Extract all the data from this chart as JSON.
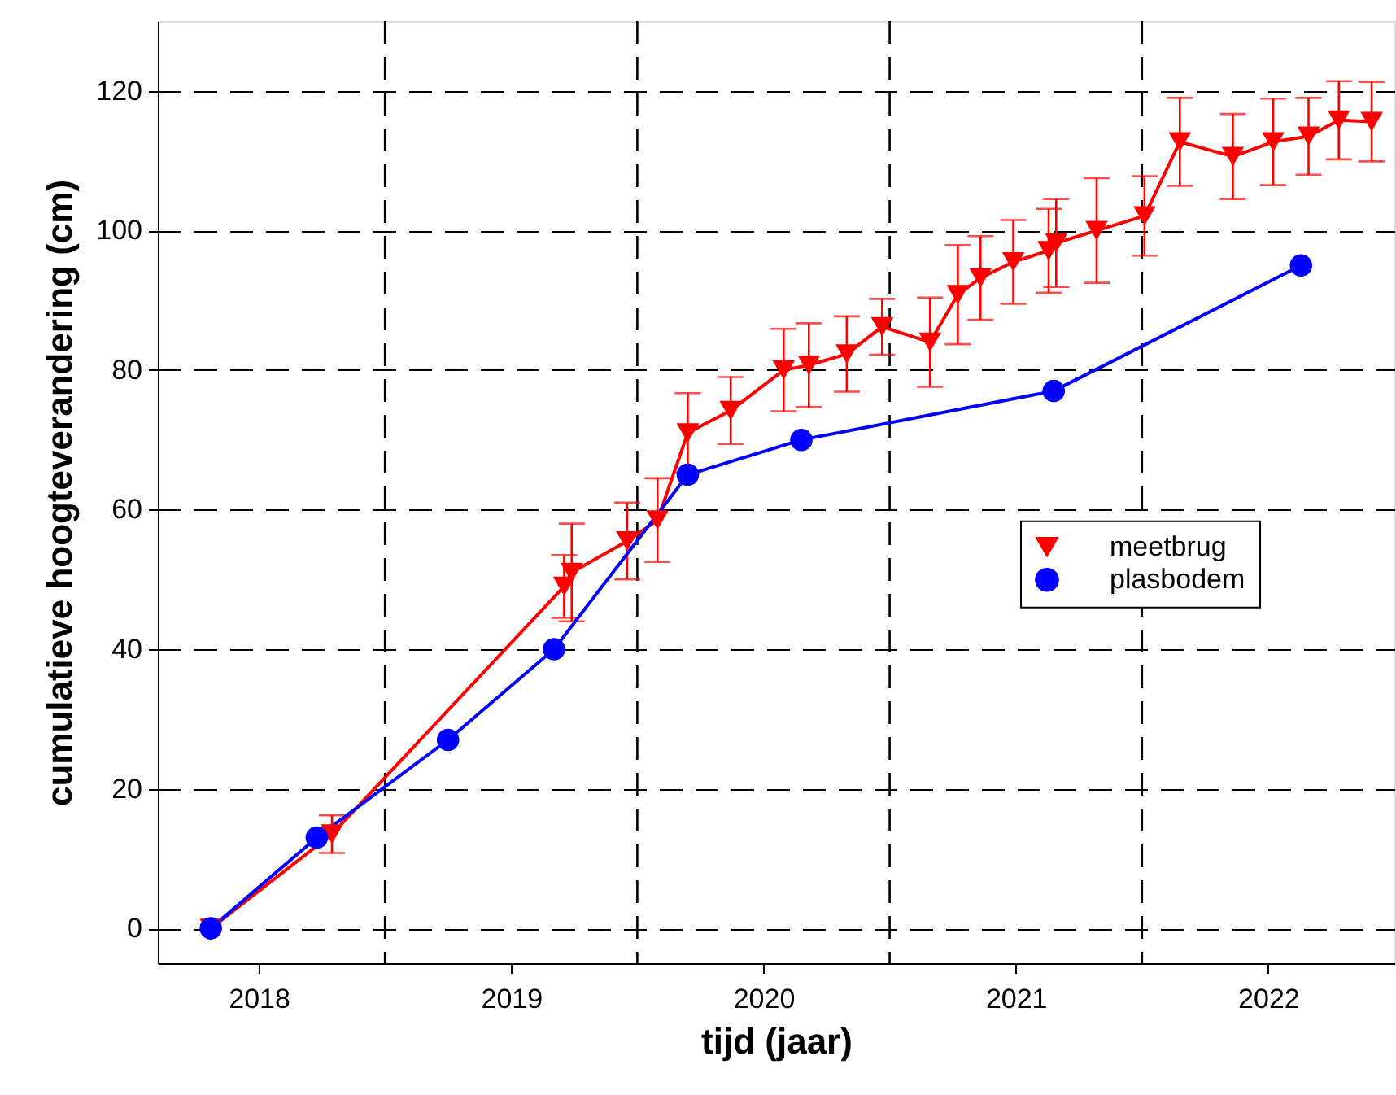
{
  "chart_data": {
    "type": "line",
    "xlabel": "tijd (jaar)",
    "ylabel": "cumulatieve hoogteverandering  (cm)",
    "xlim": [
      2017.6,
      2022.5
    ],
    "ylim": [
      -5,
      130
    ],
    "xticks": [
      2018,
      2019,
      2020,
      2021,
      2022
    ],
    "yticks": [
      0,
      20,
      40,
      60,
      80,
      100,
      120
    ],
    "grid": "y",
    "legend": "right",
    "line_style": "solid",
    "ref_lines": [
      {
        "axis": "x",
        "value": 2018.5,
        "line_style": "dashed",
        "color": "#000000"
      },
      {
        "axis": "x",
        "value": 2019.5,
        "line_style": "dashed",
        "color": "#000000"
      },
      {
        "axis": "x",
        "value": 2020.5,
        "line_style": "dashed",
        "color": "#000000"
      },
      {
        "axis": "x",
        "value": 2021.5,
        "line_style": "dashed",
        "color": "#000000"
      }
    ],
    "series": [
      {
        "name": "meetbrug",
        "color": "#ff0000",
        "marker": "triangle-down",
        "x": [
          2017.81,
          2018.29,
          2019.21,
          2019.24,
          2019.46,
          2019.58,
          2019.7,
          2019.87,
          2020.08,
          2020.18,
          2020.33,
          2020.47,
          2020.66,
          2020.77,
          2020.86,
          2020.99,
          2021.13,
          2021.16,
          2021.32,
          2021.51,
          2021.65,
          2021.86,
          2022.02,
          2022.16,
          2022.28,
          2022.41
        ],
        "values": [
          0,
          13.5,
          49,
          51,
          55.5,
          58.5,
          71,
          74.2,
          80,
          80.7,
          82.3,
          86.2,
          84,
          90.8,
          93.2,
          95.5,
          97.1,
          98.2,
          100,
          102.1,
          112.7,
          110.6,
          112.7,
          113.5,
          115.8,
          115.6
        ],
        "errors": [
          null,
          2.7,
          4.5,
          7,
          5.5,
          6,
          5.7,
          4.8,
          5.9,
          6,
          5.4,
          4,
          6.4,
          7.1,
          6,
          6,
          6,
          6.3,
          7.5,
          5.7,
          6.3,
          6.1,
          6.2,
          5.5,
          5.6,
          5.7
        ]
      },
      {
        "name": "plasbodem",
        "color": "#0000ff",
        "marker": "circle",
        "x": [
          2017.81,
          2018.23,
          2018.75,
          2019.17,
          2019.7,
          2020.15,
          2021.15,
          2022.13
        ],
        "values": [
          0,
          13,
          27,
          40,
          65,
          70,
          77,
          95
        ]
      }
    ]
  }
}
